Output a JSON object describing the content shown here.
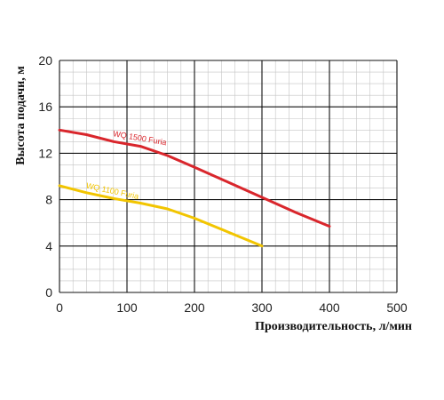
{
  "chart_data": {
    "type": "line",
    "xlabel": "Производительность, л/мин",
    "ylabel": "Высота подачи, м",
    "xlim": [
      0,
      500
    ],
    "ylim": [
      0,
      20
    ],
    "x_ticks": [
      0,
      100,
      200,
      300,
      400,
      500
    ],
    "y_ticks": [
      0,
      4,
      8,
      12,
      16,
      20
    ],
    "x_tick_labels": [
      "0",
      "100",
      "200",
      "300",
      "400",
      "500"
    ],
    "y_tick_labels": [
      "0",
      "4",
      "8",
      "12",
      "16",
      "20"
    ],
    "grid": true,
    "minor_grid_step_x": 20,
    "minor_grid_step_y": 1,
    "series": [
      {
        "name": "WQ 1500 Furia",
        "color": "#d9262c",
        "x": [
          0,
          40,
          80,
          120,
          160,
          200,
          250,
          300,
          350,
          400
        ],
        "y": [
          14.0,
          13.6,
          13.0,
          12.6,
          11.8,
          10.8,
          9.5,
          8.2,
          6.9,
          5.7
        ]
      },
      {
        "name": "WQ 1100 Furia",
        "color": "#f2c500",
        "x": [
          0,
          40,
          80,
          120,
          160,
          200,
          250,
          300
        ],
        "y": [
          9.2,
          8.6,
          8.1,
          7.7,
          7.2,
          6.4,
          5.2,
          4.0
        ]
      }
    ]
  }
}
